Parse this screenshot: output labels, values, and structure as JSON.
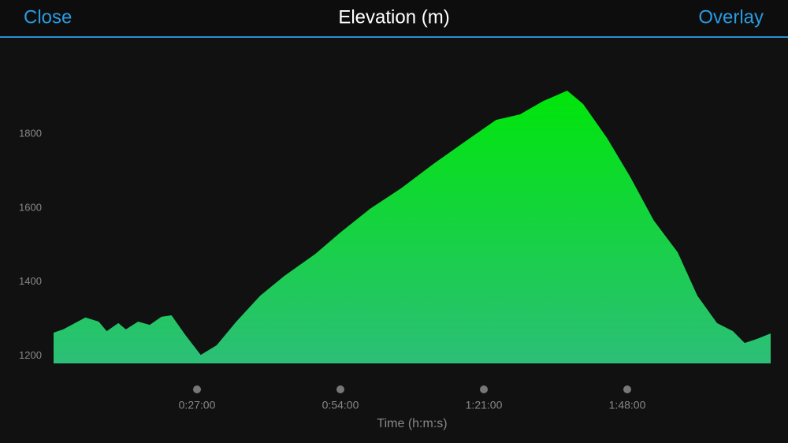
{
  "header": {
    "left": "Close",
    "title": "Elevation (m)",
    "right": "Overlay"
  },
  "chart_data": {
    "type": "area",
    "x_label": "Time (h:m:s)",
    "x": [
      0,
      1.8,
      6,
      8.5,
      10,
      12.2,
      13.6,
      15.9,
      18.1,
      20.3,
      22.2,
      24.8,
      27.7,
      30.7,
      34.4,
      38.9,
      43.4,
      49.3,
      54,
      59.6,
      65.6,
      71.5,
      77.4,
      83.3,
      87.8,
      92.2,
      96.7,
      99.7,
      104.2,
      108.6,
      113,
      117.5,
      121.2,
      124.9,
      127.9,
      130.1,
      132.4,
      135
    ],
    "values": [
      1263,
      1272,
      1304,
      1293,
      1267,
      1289,
      1272,
      1293,
      1284,
      1306,
      1310,
      1257,
      1203,
      1229,
      1293,
      1363,
      1416,
      1476,
      1534,
      1598,
      1655,
      1719,
      1779,
      1838,
      1853,
      1889,
      1917,
      1881,
      1789,
      1683,
      1566,
      1480,
      1363,
      1289,
      1267,
      1235,
      1246,
      1261
    ],
    "gradient": [
      "#00e60a",
      "#2cbf78"
    ],
    "xlim": [
      0,
      135
    ],
    "xticks": [
      {
        "value": 27,
        "label": "0:27:00"
      },
      {
        "value": 54,
        "label": "0:54:00"
      },
      {
        "value": 81,
        "label": "1:21:00"
      },
      {
        "value": 108,
        "label": "1:48:00"
      }
    ],
    "ylim": [
      1180,
      2030
    ],
    "yticks": [
      1200,
      1400,
      1600,
      1800
    ]
  }
}
